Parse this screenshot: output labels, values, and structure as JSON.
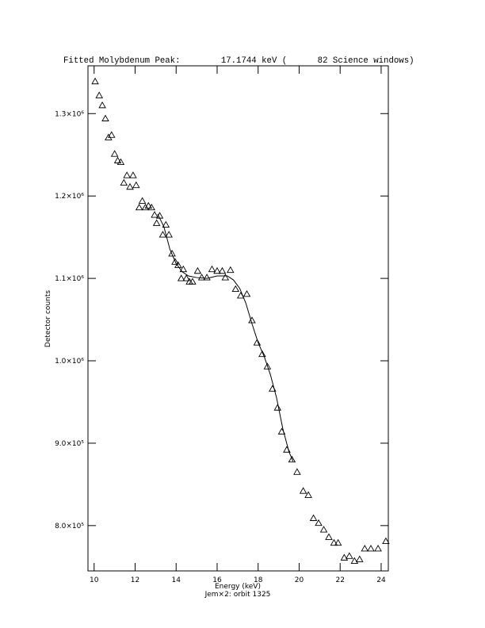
{
  "chart_data": {
    "type": "scatter",
    "title": "Fitted Molybdenum Peak:        17.1744 keV (      82 Science windows)",
    "xlabel": "Energy (keV)",
    "subtitle": "Jem×2: orbit 1325",
    "ylabel": "Detector counts",
    "xlim": [
      9.7,
      24.35
    ],
    "ylim": [
      745000,
      1358000
    ],
    "xticks": [
      10,
      12,
      14,
      16,
      18,
      20,
      22,
      24
    ],
    "yticks": [
      {
        "value": 800000,
        "label": "8.0×10⁵"
      },
      {
        "value": 900000,
        "label": "9.0×10⁵"
      },
      {
        "value": 1000000,
        "label": "1.0×10⁶"
      },
      {
        "value": 1100000,
        "label": "1.1×10⁶"
      },
      {
        "value": 1200000,
        "label": "1.2×10⁶"
      },
      {
        "value": 1300000,
        "label": "1.3×10⁶"
      }
    ],
    "series": [
      {
        "type": "scatter",
        "marker": "triangle",
        "color": "#000000",
        "x": [
          10.05,
          10.25,
          10.4,
          10.55,
          10.7,
          10.85,
          11.0,
          11.15,
          11.3,
          11.45,
          11.6,
          11.75,
          11.9,
          12.05,
          12.2,
          12.35,
          12.5,
          12.65,
          12.8,
          12.95,
          13.05,
          13.2,
          13.35,
          13.5,
          13.65,
          13.8,
          13.95,
          14.1,
          14.25,
          14.35,
          14.5,
          14.65,
          14.8,
          15.05,
          15.25,
          15.5,
          15.75,
          16.0,
          16.25,
          16.4,
          16.65,
          16.9,
          17.15,
          17.45,
          17.7,
          17.95,
          18.2,
          18.45,
          18.7,
          18.95,
          19.15,
          19.4,
          19.65,
          19.9,
          20.2,
          20.45,
          20.7,
          20.95,
          21.2,
          21.45,
          21.7,
          21.9,
          22.2,
          22.45,
          22.7,
          22.95,
          23.2,
          23.5,
          23.85,
          24.23
        ],
        "values": [
          1339000,
          1322000,
          1310000,
          1294000,
          1271000,
          1274000,
          1251000,
          1243000,
          1241000,
          1216000,
          1225000,
          1211000,
          1225000,
          1213000,
          1186000,
          1194000,
          1186000,
          1188000,
          1186000,
          1177000,
          1167000,
          1176000,
          1153000,
          1165000,
          1153000,
          1130000,
          1120000,
          1116000,
          1100000,
          1111000,
          1100000,
          1096000,
          1096000,
          1109000,
          1101000,
          1101000,
          1111000,
          1109000,
          1109000,
          1101000,
          1110000,
          1087000,
          1079000,
          1081000,
          1049000,
          1022000,
          1008000,
          993000,
          966000,
          943000,
          914000,
          892000,
          880000,
          865000,
          842000,
          837000,
          809000,
          803000,
          795000,
          786000,
          779000,
          779000,
          761000,
          763000,
          757000,
          759000,
          772000,
          772000,
          772000,
          781000
        ]
      },
      {
        "type": "line",
        "color": "#000000",
        "x": [
          13.1,
          13.4,
          13.7,
          14.0,
          14.3,
          14.6,
          15.0,
          15.5,
          16.0,
          16.5,
          16.8,
          17.1,
          17.4,
          17.7,
          18.0,
          18.3,
          18.6,
          18.9,
          19.2,
          19.5,
          19.7
        ],
        "values": [
          1178000,
          1163000,
          1135000,
          1118000,
          1108000,
          1103000,
          1101000,
          1100000,
          1103000,
          1103000,
          1098000,
          1088000,
          1070000,
          1045000,
          1022000,
          1005000,
          983000,
          955000,
          918000,
          890000,
          878000
        ]
      }
    ]
  }
}
